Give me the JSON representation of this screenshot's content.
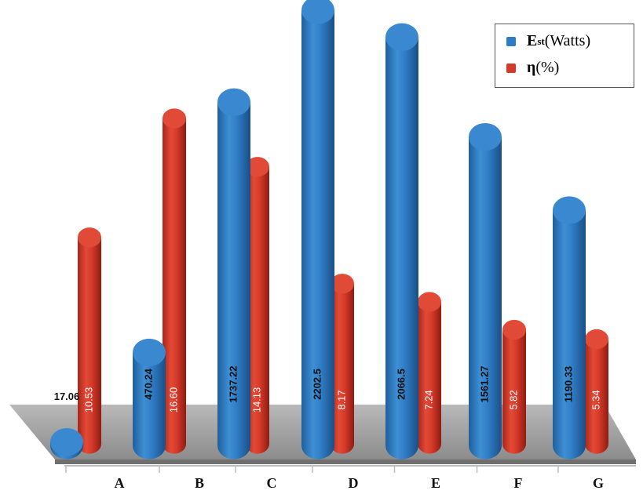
{
  "chart_data": {
    "type": "bar",
    "categories": [
      "A",
      "B",
      "C",
      "D",
      "E",
      "F",
      "G"
    ],
    "series": [
      {
        "name": "E_st (Watts)",
        "values": [
          17.06,
          470.24,
          1737.22,
          2202.5,
          2066.5,
          1561.27,
          1190.33
        ],
        "labels": [
          "17.06",
          "470.24",
          "1737.22",
          "2202.5",
          "2066.5",
          "1561.27",
          "1190.33"
        ],
        "color": "#2f7cc4"
      },
      {
        "name": "η (%)",
        "values": [
          10.53,
          16.6,
          14.13,
          8.17,
          7.24,
          5.82,
          5.34
        ],
        "labels": [
          "10.53",
          "16.60",
          "14.13",
          "8.17",
          "7.24",
          "5.82",
          "5.34"
        ],
        "color": "#d63a2a"
      }
    ],
    "legend": {
      "position": "top-right",
      "items": [
        {
          "main": "E",
          "sub": "st",
          "rest": " (Watts)",
          "color": "#2f7cc4"
        },
        {
          "main": "η",
          "sub": "",
          "rest": " (%)",
          "color": "#d63a2a"
        }
      ]
    },
    "title": "",
    "xlabel": "",
    "ylabel": "",
    "grid": false
  }
}
